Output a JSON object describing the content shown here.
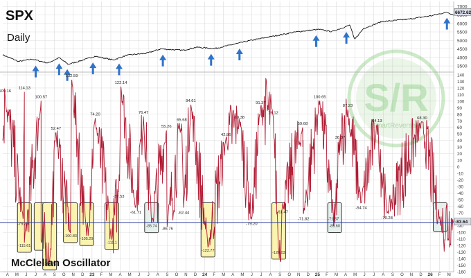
{
  "header": {
    "symbol": "SPX",
    "period": "Daily"
  },
  "footer_title": "McClellan Oscillator",
  "watermark": {
    "monogram": "S/R",
    "brand": "SmartReversals"
  },
  "colors": {
    "price_line": "#111111",
    "oscillator_line": "#b01c34",
    "zero_line": "#2b3a9e",
    "highlight_yellow": "#fbf3b0",
    "highlight_blue": "#e6f1ee",
    "arrow": "#2f73c9",
    "watermark": "#8fcf86",
    "grid": "#dcdcdc",
    "current_tag": "#d9dde8"
  },
  "chart_data": [
    {
      "type": "line",
      "name": "SPX Daily",
      "y_axis_ticks": [
        3500,
        4000,
        4500,
        5000,
        5500,
        6000,
        6500,
        7000
      ],
      "ylim": [
        3300,
        7050
      ],
      "current_value": "6672.62",
      "x": [
        0,
        0.035,
        0.065,
        0.1,
        0.125,
        0.145,
        0.165,
        0.205,
        0.245,
        0.275,
        0.32,
        0.35,
        0.4,
        0.43,
        0.47,
        0.51,
        0.55,
        0.6,
        0.65,
        0.7,
        0.73,
        0.77,
        0.78,
        0.8,
        0.84,
        0.9,
        0.95,
        0.985,
        1.0
      ],
      "values": [
        4150,
        3760,
        3900,
        3670,
        3980,
        3600,
        3740,
        4070,
        3850,
        4130,
        4250,
        4500,
        4420,
        4600,
        4520,
        4760,
        5000,
        5250,
        5500,
        5650,
        5520,
        5900,
        5050,
        5700,
        6100,
        6250,
        6450,
        6660,
        6500
      ],
      "markers_up_arrow_x": [
        0.073,
        0.125,
        0.143,
        0.2,
        0.258,
        0.355,
        0.462,
        0.525,
        0.695,
        0.762,
        0.985
      ]
    },
    {
      "type": "line",
      "name": "McClellan Oscillator",
      "ylim": [
        -160,
        140
      ],
      "y_axis_ticks": [
        140,
        130,
        120,
        110,
        100,
        90,
        80,
        70,
        60,
        50,
        40,
        30,
        20,
        10,
        0,
        -10,
        -20,
        -30,
        -40,
        -50,
        -60,
        -70,
        -80,
        -90,
        -100,
        -110,
        -120,
        -130,
        -140,
        -150,
        -160
      ],
      "current_value": "-83.64",
      "x_tick_labels": [
        "A",
        "M",
        "J",
        "J",
        "A",
        "S",
        "O",
        "N",
        "D",
        "23",
        "F",
        "M",
        "A",
        "M",
        "J",
        "J",
        "A",
        "S",
        "O",
        "N",
        "D",
        "24",
        "F",
        "M",
        "A",
        "M",
        "J",
        "J",
        "A",
        "S",
        "O",
        "N",
        "D",
        "25",
        "F",
        "M",
        "A",
        "M",
        "J",
        "J",
        "A",
        "S",
        "O",
        "N",
        "D",
        "26",
        "F",
        "M"
      ],
      "peak_labels": [
        {
          "x": 0.005,
          "value": 109.16,
          "text": "109.16"
        },
        {
          "x": 0.048,
          "value": 114.13,
          "text": "114.13"
        },
        {
          "x": 0.085,
          "value": 100.57,
          "text": "100.57"
        },
        {
          "x": 0.118,
          "value": 52.47,
          "text": "52.47"
        },
        {
          "x": 0.153,
          "value": 132.59,
          "text": "132.59"
        },
        {
          "x": 0.205,
          "value": 74.2,
          "text": "74.20"
        },
        {
          "x": 0.262,
          "value": 122.14,
          "text": "122.14"
        },
        {
          "x": 0.312,
          "value": 76.47,
          "text": "76.47"
        },
        {
          "x": 0.363,
          "value": 55.26,
          "text": "55.26"
        },
        {
          "x": 0.397,
          "value": 65.68,
          "text": "65.68"
        },
        {
          "x": 0.417,
          "value": 94.61,
          "text": "94.61"
        },
        {
          "x": 0.495,
          "value": 42.86,
          "text": "42.86"
        },
        {
          "x": 0.525,
          "value": 69.38,
          "text": "69.38"
        },
        {
          "x": 0.572,
          "value": 91.37,
          "text": "91.37"
        },
        {
          "x": 0.6,
          "value": 76.12,
          "text": "76.12"
        },
        {
          "x": 0.665,
          "value": 59.68,
          "text": "59.68"
        },
        {
          "x": 0.703,
          "value": 100.65,
          "text": "100.65"
        },
        {
          "x": 0.748,
          "value": 38.37,
          "text": "38.37"
        },
        {
          "x": 0.765,
          "value": 87.23,
          "text": "87.23"
        },
        {
          "x": 0.83,
          "value": 64.13,
          "text": "64.13"
        },
        {
          "x": 0.93,
          "value": 68.3,
          "text": "68.30"
        }
      ],
      "trough_labels": [
        {
          "x": 0.045,
          "value": -79.39,
          "text": "-79.39"
        },
        {
          "x": 0.257,
          "value": -37.53,
          "text": "-37.53"
        },
        {
          "x": 0.295,
          "value": -61.71,
          "text": "-61.71"
        },
        {
          "x": 0.365,
          "value": -86.76,
          "text": "-86.76"
        },
        {
          "x": 0.401,
          "value": -62.44,
          "text": "-62.44"
        },
        {
          "x": 0.552,
          "value": -79.2,
          "text": "-79.20"
        },
        {
          "x": 0.62,
          "value": -61.47,
          "text": "-61.47"
        },
        {
          "x": 0.667,
          "value": -71.82,
          "text": "-71.82"
        },
        {
          "x": 0.733,
          "value": -71.57,
          "text": "-71.57"
        },
        {
          "x": 0.795,
          "value": -54.74,
          "text": "-54.74"
        },
        {
          "x": 0.852,
          "value": -70.28,
          "text": "-70.28"
        }
      ],
      "highlighted_troughs": [
        {
          "x": 0.048,
          "value": -115.61,
          "text": "-115.61",
          "color": "yellow"
        },
        {
          "x": 0.085,
          "value": -112.57,
          "text": "",
          "color": "yellow"
        },
        {
          "x": 0.104,
          "value": -142.31,
          "text": "-142.31",
          "color": "yellow"
        },
        {
          "x": 0.15,
          "value": -100.83,
          "text": "-100.83",
          "color": "yellow"
        },
        {
          "x": 0.186,
          "value": -105.29,
          "text": "-105.29",
          "color": "yellow"
        },
        {
          "x": 0.242,
          "value": -111.1,
          "text": "-111.1",
          "color": "yellow"
        },
        {
          "x": 0.33,
          "value": -85.74,
          "text": "-85.74",
          "color": "blue"
        },
        {
          "x": 0.455,
          "value": -122.77,
          "text": "-122.77",
          "color": "yellow"
        },
        {
          "x": 0.612,
          "value": -126.03,
          "text": "-126.03",
          "color": "yellow"
        },
        {
          "x": 0.736,
          "value": -85.6,
          "text": "-85.60",
          "color": "blue"
        },
        {
          "x": 0.97,
          "value": -83.64,
          "text": "",
          "color": "blue"
        }
      ]
    }
  ]
}
